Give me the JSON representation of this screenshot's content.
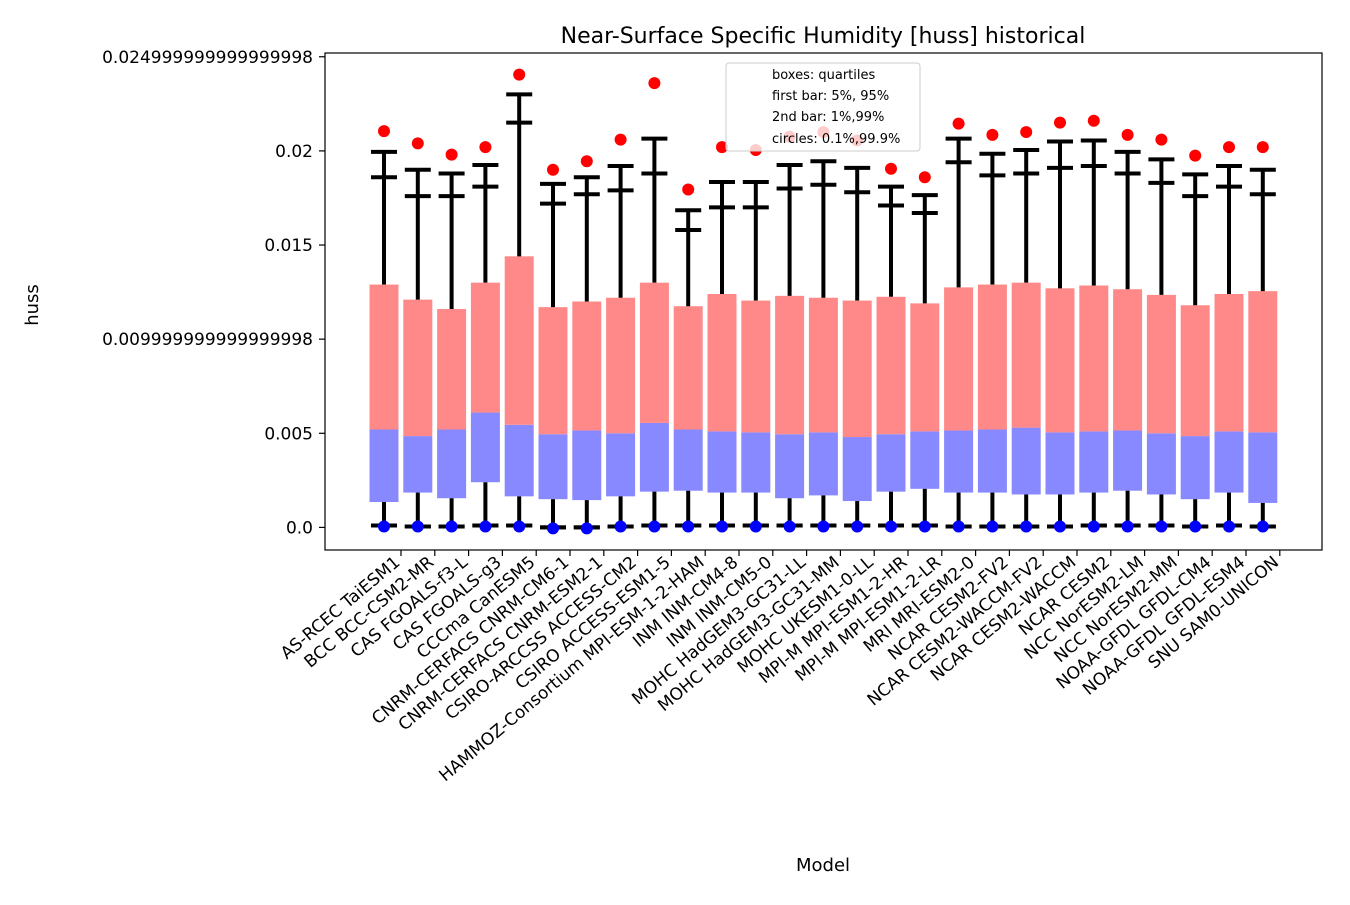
{
  "chart_data": {
    "type": "box",
    "title": "Near-Surface Specific Humidity [huss] historical",
    "xlabel": "Model",
    "ylabel": "huss",
    "ylim": [
      -0.0012,
      0.0252
    ],
    "yticks": [
      0.0,
      0.005,
      0.009999999999999998,
      0.015,
      0.02,
      0.024999999999999998
    ],
    "ytick_labels": [
      "0.0",
      "0.005",
      "0.009999999999999998",
      "0.015",
      "0.02",
      "0.024999999999999998"
    ],
    "legend": {
      "placement": "top-center",
      "lines": [
        "boxes: quartiles",
        "first bar: 5%, 95%",
        "2nd bar: 1%,99%",
        "circles: 0.1%,99.9%"
      ]
    },
    "colors": {
      "upper_box": "#ff8888",
      "lower_box": "#8888ff",
      "whisker": "#000000",
      "max_circle": "#ff0000",
      "min_circle": "#0000ff"
    },
    "categories": [
      "AS-RCEC TaiESM1",
      "BCC BCC-CSM2-MR",
      "CAS FGOALS-f3-L",
      "CAS FGOALS-g3",
      "CCCma CanESM5",
      "CNRM-CERFACS CNRM-CM6-1",
      "CNRM-CERFACS CNRM-ESM2-1",
      "CSIRO-ARCCSS ACCESS-CM2",
      "CSIRO ACCESS-ESM1-5",
      "HAMMOZ-Consortium MPI-ESM-1-2-HAM",
      "INM INM-CM4-8",
      "INM INM-CM5-0",
      "MOHC HadGEM3-GC31-LL",
      "MOHC HadGEM3-GC31-MM",
      "MOHC UKESM1-0-LL",
      "MPI-M MPI-ESM1-2-HR",
      "MPI-M MPI-ESM1-2-LR",
      "MRI MRI-ESM2-0",
      "NCAR CESM2-FV2",
      "NCAR CESM2-WACCM-FV2",
      "NCAR CESM2-WACCM",
      "NCAR CESM2",
      "NCC NorESM2-LM",
      "NCC NorESM2-MM",
      "NOAA-GFDL GFDL-CM4",
      "NOAA-GFDL GFDL-ESM4",
      "SNU SAM0-UNICON"
    ],
    "q1": [
      0.00135,
      0.00185,
      0.00155,
      0.0024,
      0.00165,
      0.0015,
      0.00145,
      0.00165,
      0.0019,
      0.00195,
      0.00185,
      0.00185,
      0.00155,
      0.0017,
      0.0014,
      0.0019,
      0.00205,
      0.00185,
      0.00185,
      0.00175,
      0.00175,
      0.00185,
      0.00195,
      0.00175,
      0.0015,
      0.00185,
      0.0013
    ],
    "median": [
      0.0052,
      0.00485,
      0.0052,
      0.0061,
      0.00545,
      0.00495,
      0.00515,
      0.005,
      0.00555,
      0.0052,
      0.0051,
      0.00505,
      0.00495,
      0.00505,
      0.0048,
      0.00495,
      0.0051,
      0.00515,
      0.0052,
      0.0053,
      0.00505,
      0.0051,
      0.00515,
      0.005,
      0.00485,
      0.0051,
      0.00505
    ],
    "q3": [
      0.0129,
      0.0121,
      0.0116,
      0.013,
      0.0144,
      0.0117,
      0.012,
      0.0122,
      0.013,
      0.01175,
      0.0124,
      0.01205,
      0.0123,
      0.0122,
      0.01205,
      0.01225,
      0.0119,
      0.01275,
      0.0129,
      0.013,
      0.0127,
      0.01285,
      0.01265,
      0.01235,
      0.0118,
      0.0124,
      0.01255
    ],
    "p5": [
      0.0001,
      5e-05,
      5e-05,
      0.0001,
      0.0001,
      0.0,
      0.0,
      5e-05,
      0.0001,
      0.0001,
      0.0001,
      0.0001,
      0.0001,
      0.0001,
      0.0001,
      0.0001,
      0.0001,
      5e-05,
      5e-05,
      5e-05,
      5e-05,
      0.0001,
      0.0001,
      0.0001,
      5e-05,
      0.0001,
      5e-05
    ],
    "p95": [
      0.0186,
      0.0176,
      0.0176,
      0.0181,
      0.0215,
      0.0172,
      0.0177,
      0.0179,
      0.0188,
      0.0158,
      0.017,
      0.017,
      0.018,
      0.0182,
      0.0178,
      0.0171,
      0.0167,
      0.0194,
      0.0187,
      0.0188,
      0.0191,
      0.0192,
      0.0188,
      0.0183,
      0.0176,
      0.0181,
      0.0177
    ],
    "p1": [
      0.0001,
      5e-05,
      5e-05,
      0.0001,
      0.0001,
      0.0,
      0.0,
      5e-05,
      0.0001,
      0.0001,
      0.0001,
      0.0001,
      0.0001,
      0.0001,
      0.0001,
      0.0001,
      0.0001,
      5e-05,
      5e-05,
      5e-05,
      5e-05,
      0.0001,
      0.0001,
      0.0001,
      5e-05,
      0.0001,
      5e-05
    ],
    "p99": [
      0.01995,
      0.019,
      0.0188,
      0.01925,
      0.023,
      0.01825,
      0.0186,
      0.0192,
      0.02065,
      0.01685,
      0.01835,
      0.01835,
      0.01925,
      0.01945,
      0.0191,
      0.0181,
      0.01765,
      0.02065,
      0.01985,
      0.02005,
      0.0205,
      0.02055,
      0.01995,
      0.01955,
      0.01875,
      0.0192,
      0.019
    ],
    "p0_1": [
      5e-05,
      5e-05,
      5e-05,
      5e-05,
      5e-05,
      -5e-05,
      -5e-05,
      5e-05,
      5e-05,
      5e-05,
      5e-05,
      5e-05,
      5e-05,
      5e-05,
      5e-05,
      5e-05,
      5e-05,
      5e-05,
      5e-05,
      5e-05,
      5e-05,
      5e-05,
      5e-05,
      5e-05,
      5e-05,
      5e-05,
      5e-05
    ],
    "p99_9": [
      0.02105,
      0.0204,
      0.0198,
      0.0202,
      0.02405,
      0.019,
      0.01945,
      0.0206,
      0.0236,
      0.01795,
      0.0202,
      0.02005,
      0.02075,
      0.021,
      0.02055,
      0.01905,
      0.0186,
      0.02145,
      0.02085,
      0.021,
      0.0215,
      0.0216,
      0.02085,
      0.0206,
      0.01975,
      0.0202,
      0.0202
    ]
  }
}
